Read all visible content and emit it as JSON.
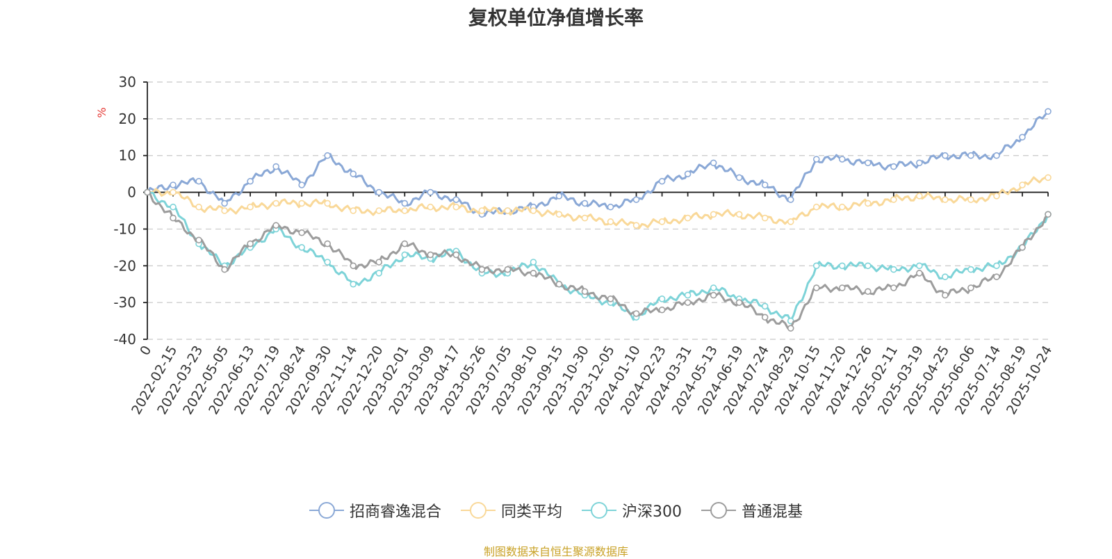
{
  "chart_data": {
    "type": "line",
    "title": "复权单位净值增长率",
    "ylabel": "%",
    "xlabel": "",
    "ylim": [
      -40,
      30
    ],
    "yticks": [
      30,
      20,
      10,
      0,
      -10,
      -20,
      -30,
      -40
    ],
    "grid": true,
    "legend_position": "bottom",
    "source": "制图数据来自恒生聚源数据库",
    "categories": [
      "0",
      "2022-02-15",
      "2022-03-23",
      "2022-05-05",
      "2022-06-13",
      "2022-07-19",
      "2022-08-24",
      "2022-09-30",
      "2022-11-14",
      "2022-12-20",
      "2023-02-01",
      "2023-03-09",
      "2023-04-17",
      "2023-05-26",
      "2023-07-05",
      "2023-08-10",
      "2023-09-15",
      "2023-10-30",
      "2023-12-05",
      "2024-01-10",
      "2024-02-23",
      "2024-03-31",
      "2024-05-13",
      "2024-06-19",
      "2024-07-24",
      "2024-08-29",
      "2024-10-15",
      "2024-11-20",
      "2024-12-26",
      "2025-02-11",
      "2025-03-19",
      "2025-04-25",
      "2025-06-06",
      "2025-07-14",
      "2025-08-19",
      "2025-10-24"
    ],
    "series": [
      {
        "name": "招商睿逸混合",
        "color": "#8aa8d6",
        "values": [
          0,
          2,
          3,
          -3,
          3,
          7,
          2,
          10,
          5,
          0,
          -3,
          0,
          -2,
          -6,
          -5,
          -4,
          -1,
          -3,
          -4,
          -2,
          3,
          5,
          8,
          4,
          2,
          -2,
          9,
          9,
          8,
          7,
          8,
          10,
          10,
          10,
          15,
          22
        ]
      },
      {
        "name": "同类平均",
        "color": "#f9d898",
        "values": [
          0,
          0,
          -4,
          -5,
          -4,
          -3,
          -3,
          -3,
          -5,
          -5,
          -5,
          -4,
          -4,
          -5,
          -5,
          -5,
          -6,
          -7,
          -8,
          -9,
          -8,
          -7,
          -6,
          -6,
          -7,
          -8,
          -4,
          -4,
          -3,
          -2,
          -1,
          -2,
          -2,
          -1,
          2,
          4
        ]
      },
      {
        "name": "沪深300",
        "color": "#7dd3d8",
        "values": [
          0,
          -4,
          -14,
          -20,
          -15,
          -10,
          -15,
          -19,
          -25,
          -22,
          -17,
          -18,
          -16,
          -22,
          -22,
          -19,
          -25,
          -28,
          -30,
          -34,
          -29,
          -28,
          -26,
          -29,
          -31,
          -35,
          -20,
          -20,
          -20,
          -21,
          -20,
          -23,
          -21,
          -20,
          -15,
          -6
        ]
      },
      {
        "name": "普通混基",
        "color": "#9c9c9c",
        "values": [
          0,
          -7,
          -13,
          -21,
          -14,
          -9,
          -11,
          -14,
          -20,
          -19,
          -14,
          -17,
          -17,
          -21,
          -21,
          -22,
          -25,
          -27,
          -29,
          -33,
          -32,
          -30,
          -28,
          -30,
          -34,
          -37,
          -26,
          -26,
          -27,
          -26,
          -22,
          -28,
          -26,
          -23,
          -15,
          -6
        ]
      }
    ]
  }
}
